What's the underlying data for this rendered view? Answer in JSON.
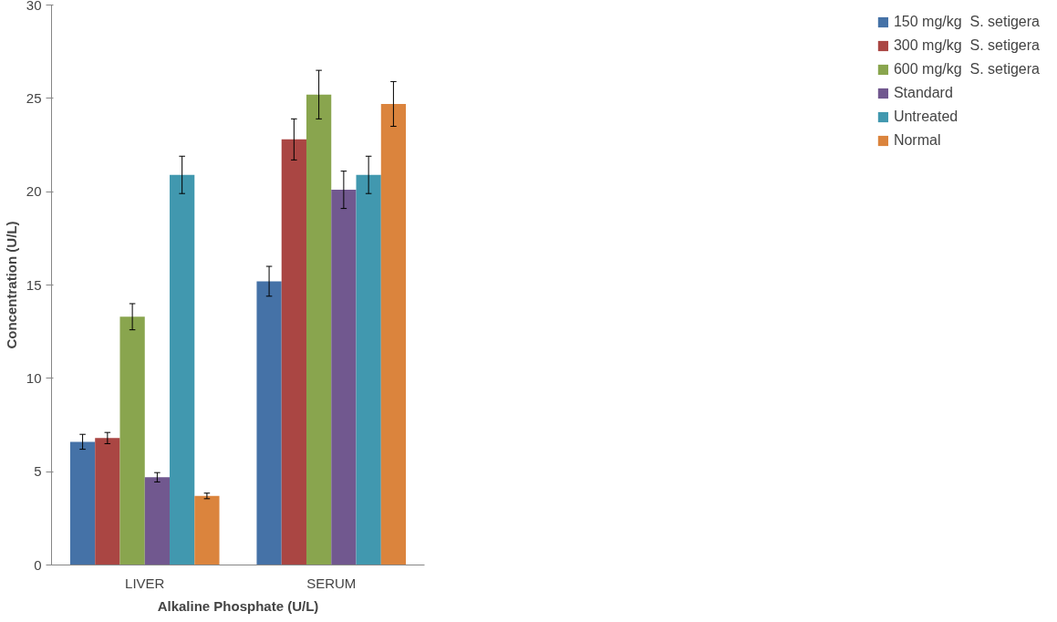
{
  "chart_data": {
    "type": "bar",
    "xlabel": "Alkaline Phosphate (U/L)",
    "ylabel": "Concentration (U/L)",
    "categories": [
      "LIVER",
      "SERUM"
    ],
    "series": [
      {
        "name": "150 mg/kg  S. setigera",
        "color": "#4572a7",
        "values": [
          6.6,
          15.2
        ],
        "errors": [
          0.4,
          0.8
        ]
      },
      {
        "name": "300 mg/kg  S. setigera",
        "color": "#aa4643",
        "values": [
          6.8,
          22.8
        ],
        "errors": [
          0.3,
          1.1
        ]
      },
      {
        "name": "600 mg/kg  S. setigera",
        "color": "#89a54e",
        "values": [
          13.3,
          25.2
        ],
        "errors": [
          0.7,
          1.3
        ]
      },
      {
        "name": "Standard",
        "color": "#71588f",
        "values": [
          4.7,
          20.1
        ],
        "errors": [
          0.25,
          1.0
        ]
      },
      {
        "name": "Untreated",
        "color": "#4198af",
        "values": [
          20.9,
          20.9
        ],
        "errors": [
          1.0,
          1.0
        ]
      },
      {
        "name": "Normal",
        "color": "#db843d",
        "values": [
          3.7,
          24.7
        ],
        "errors": [
          0.15,
          1.2
        ]
      }
    ],
    "ylim": [
      0,
      30
    ],
    "yticks": [
      0,
      5,
      10,
      15,
      20,
      25,
      30
    ],
    "grid": false,
    "legend": "right"
  }
}
